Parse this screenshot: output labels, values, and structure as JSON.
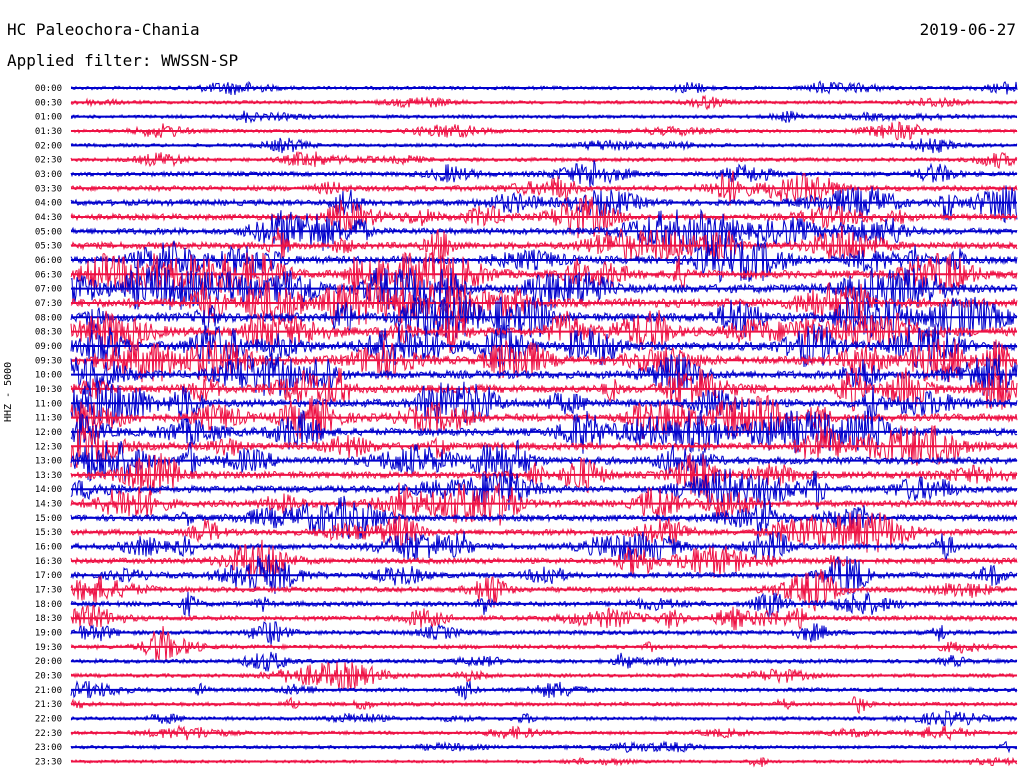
{
  "header": {
    "station": "HC Paleochora-Chania",
    "date": "2019-06-27",
    "filter_label": "Applied filter: WWSSN-SP"
  },
  "axis": {
    "ylabel": "HHZ - 5000"
  },
  "colors": {
    "trace_a": "#0000cc",
    "trace_b": "#ee1144",
    "background": "#ffffff"
  },
  "chart_data": {
    "type": "line",
    "title": "HC Paleochora-Chania",
    "subtitle": "Applied filter: WWSSN-SP",
    "ylabel": "HHZ - 5000",
    "row_labels": [
      "00:00",
      "00:30",
      "01:00",
      "01:30",
      "02:00",
      "02:30",
      "03:00",
      "03:30",
      "04:00",
      "04:30",
      "05:00",
      "05:30",
      "06:00",
      "06:30",
      "07:00",
      "07:30",
      "08:00",
      "08:30",
      "09:00",
      "09:30",
      "10:00",
      "10:30",
      "11:00",
      "11:30",
      "12:00",
      "12:30",
      "13:00",
      "13:30",
      "14:00",
      "14:30",
      "15:00",
      "15:30",
      "16:00",
      "16:30",
      "17:00",
      "17:30",
      "18:00",
      "18:30",
      "19:00",
      "19:30",
      "20:00",
      "20:30",
      "21:00",
      "21:30",
      "22:00",
      "22:30",
      "23:00",
      "23:30"
    ],
    "row_activity": [
      1,
      1,
      1,
      1,
      1,
      1.2,
      1.6,
      2,
      2.4,
      2.4,
      2.6,
      2.9,
      3.3,
      3.5,
      3.8,
      3.9,
      4,
      3.9,
      3.8,
      3.6,
      3.5,
      3.4,
      3.4,
      3.3,
      3.3,
      3.2,
      3.1,
      3,
      2.9,
      2.7,
      2.6,
      2.4,
      2.3,
      2.2,
      2.2,
      2,
      1.9,
      1.8,
      1.6,
      1.4,
      1.3,
      1.2,
      1.3,
      1.2,
      1.1,
      1,
      0.9,
      0.8
    ],
    "series_colors": [
      "#0000cc",
      "#ee1144"
    ],
    "grid": false,
    "legend": "none"
  }
}
